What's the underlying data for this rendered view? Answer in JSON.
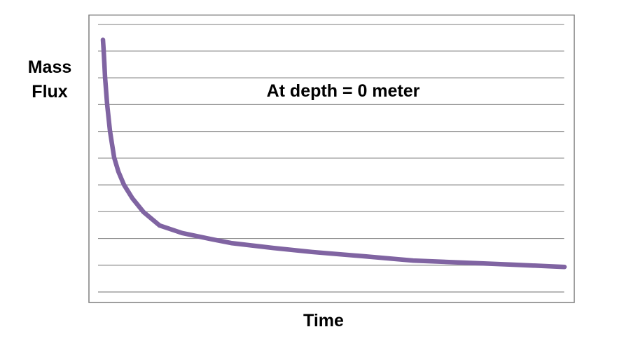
{
  "page": {
    "background": "#FFFFFF"
  },
  "chart": {
    "ylabel_lines": [
      "Mass",
      "Flux"
    ],
    "xlabel": "Time",
    "annotation": "At depth = 0 meter"
  },
  "colors": {
    "curve": "#8064A2",
    "gridline": "#8C8C8C",
    "frame_border": "#7F7F7F",
    "text": "#000000",
    "background": "#FFFFFF"
  },
  "chart_data": {
    "type": "line",
    "title": "",
    "xlabel": "Time",
    "ylabel": "Mass Flux",
    "annotation": "At depth = 0 meter",
    "axes_numeric": false,
    "x_tick_labels": [],
    "y_tick_labels": [],
    "grid": "horizontal",
    "gridline_count": 11,
    "legend_position": "none",
    "x_range_normalized": [
      0,
      1
    ],
    "y_range_normalized": [
      0,
      1
    ],
    "series": [
      {
        "color": "#8064A2",
        "stroke_width": 6.5,
        "points": [
          [
            0.0,
            0.915
          ],
          [
            0.0015,
            0.878
          ],
          [
            0.003,
            0.834
          ],
          [
            0.0046,
            0.785
          ],
          [
            0.0068,
            0.737
          ],
          [
            0.0091,
            0.69
          ],
          [
            0.0121,
            0.644
          ],
          [
            0.0152,
            0.598
          ],
          [
            0.0197,
            0.551
          ],
          [
            0.0243,
            0.505
          ],
          [
            0.0334,
            0.456
          ],
          [
            0.0455,
            0.41
          ],
          [
            0.0637,
            0.363
          ],
          [
            0.088,
            0.315
          ],
          [
            0.1229,
            0.268
          ],
          [
            0.1715,
            0.242
          ],
          [
            0.2367,
            0.22
          ],
          [
            0.2777,
            0.207
          ],
          [
            0.3687,
            0.19
          ],
          [
            0.4522,
            0.176
          ],
          [
            0.566,
            0.161
          ],
          [
            0.6722,
            0.146
          ],
          [
            0.7784,
            0.139
          ],
          [
            0.8847,
            0.132
          ],
          [
            1.0,
            0.124
          ]
        ]
      }
    ]
  }
}
